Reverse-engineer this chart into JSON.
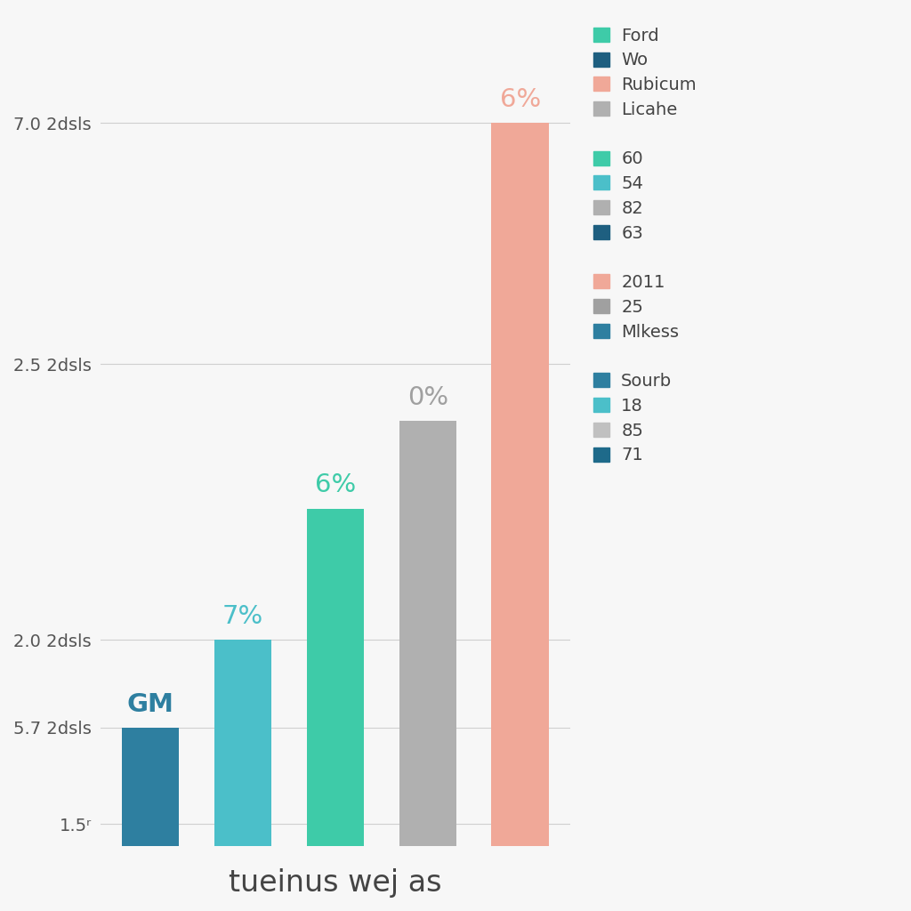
{
  "bar_labels": [
    "GM",
    "7%",
    "6%",
    "0%",
    "6%"
  ],
  "bar_tops": [
    1.72,
    1.92,
    2.22,
    2.42,
    3.1
  ],
  "bar_colors": [
    "#2e7fa0",
    "#4bbfc9",
    "#3ecba8",
    "#b0b0b0",
    "#f0a898"
  ],
  "label_colors": [
    "#2e7fa0",
    "#4bbfc9",
    "#3ecba8",
    "#a0a0a0",
    "#f0a898"
  ],
  "xlabel": "tueinus wej as",
  "ytick_positions": [
    1.5,
    1.72,
    1.92,
    2.22,
    2.55,
    3.1
  ],
  "ytick_labels": [
    "1.5ʳ",
    "5.7 2dsls",
    "2.0 2dsls",
    "2.5 2dsls",
    "7.0 2dsls",
    ""
  ],
  "ymin": 1.45,
  "ymax": 3.35,
  "grid_y_positions": [
    1.5,
    1.72,
    1.92,
    2.22,
    2.55,
    3.1
  ],
  "background_color": "#f7f7f7",
  "grid_color": "#d0d0d0",
  "xlabel_fontsize": 24,
  "legend_groups": [
    {
      "entries": [
        {
          "label": "Ford",
          "color": "#3ecba8",
          "small_caps": true
        },
        {
          "label": "Wo",
          "color": "#1e5f80",
          "small_caps": false
        },
        {
          "label": "Rubicum",
          "color": "#f0a898",
          "small_caps": false
        },
        {
          "label": "Licahe",
          "color": "#b0b0b0",
          "small_caps": true
        }
      ]
    },
    {
      "entries": [
        {
          "label": "60",
          "color": "#3ecba8",
          "small_caps": false
        },
        {
          "label": "54",
          "color": "#4bbfc9",
          "small_caps": false
        },
        {
          "label": "82",
          "color": "#b0b0b0",
          "small_caps": false
        },
        {
          "label": "63",
          "color": "#1e5f80",
          "small_caps": false
        }
      ]
    },
    {
      "entries": [
        {
          "label": "2011",
          "color": "#f0a898",
          "small_caps": false
        },
        {
          "label": "25",
          "color": "#a0a0a0",
          "small_caps": false
        },
        {
          "label": "Mlkess",
          "color": "#2e7fa0",
          "small_caps": true
        }
      ]
    },
    {
      "entries": [
        {
          "label": "Sourb",
          "color": "#2e7fa0",
          "small_caps": true
        },
        {
          "label": "18",
          "color": "#4bbfc9",
          "small_caps": false
        },
        {
          "label": "85",
          "color": "#c0c0c0",
          "small_caps": false
        },
        {
          "label": "71",
          "color": "#1e6a8a",
          "small_caps": false
        }
      ]
    }
  ]
}
